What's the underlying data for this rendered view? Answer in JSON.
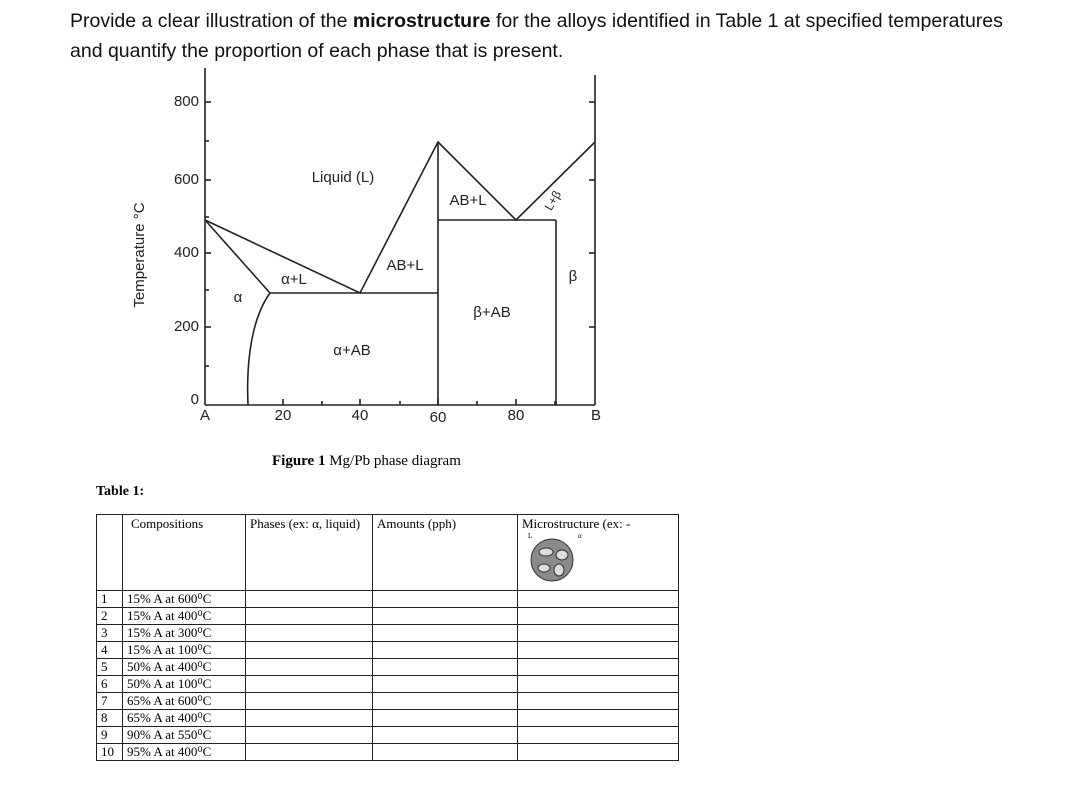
{
  "header": {
    "before": "Provide a clear illustration of the ",
    "bold": "microstructure",
    "after": " for the alloys identified in Table 1 at specified temperatures and quantify the proportion of each phase that is present."
  },
  "figure": {
    "y_axis_label": "Temperature °C",
    "y_ticks": [
      "800",
      "600",
      "400",
      "200",
      "0"
    ],
    "x_ticks": [
      "A",
      "20",
      "40",
      "60",
      "80",
      "B"
    ],
    "regions": [
      "Liquid (L)",
      "AB+L",
      "AB+L",
      "α+L",
      "α",
      "β+AB",
      "α+AB",
      "β",
      "L+β"
    ],
    "caption": {
      "label": "Figure 1",
      "text": "Mg/Pb phase diagram"
    }
  },
  "table": {
    "title": "Table 1:",
    "columns": [
      "Compositions",
      "Phases (ex: α, liquid)",
      "Amounts (pph)",
      "Microstructure (ex: -"
    ],
    "example_labels": [
      "L",
      "α"
    ],
    "rows": [
      [
        "1",
        "15% A at 600⁰C"
      ],
      [
        "2",
        "15% A at 400⁰C"
      ],
      [
        "3",
        "15% A at 300⁰C"
      ],
      [
        "4",
        "15% A at 100⁰C"
      ],
      [
        "5",
        "50% A at 400⁰C"
      ],
      [
        "6",
        "50% A at 100⁰C"
      ],
      [
        "7",
        "65% A at 600⁰C"
      ],
      [
        "8",
        "65% A at 400⁰C"
      ],
      [
        "9",
        "90% A at 550⁰C"
      ],
      [
        "10",
        "95% A at 400⁰C"
      ]
    ]
  }
}
